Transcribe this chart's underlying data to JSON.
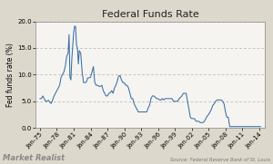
{
  "title": "Federal Funds Rate",
  "ylabel": "Fed funds rate (%)",
  "source_text": "Source: Federal Reserve Bank of St. Louis",
  "watermark": "Market Realist",
  "ylim": [
    0.0,
    20.0
  ],
  "yticks": [
    0.0,
    5.0,
    10.0,
    15.0,
    20.0
  ],
  "xtick_labels": [
    "Jan-75",
    "Jan-78",
    "Jan-81",
    "Jan-84",
    "Jan-87",
    "Jan-90",
    "Jan-93",
    "Jan-96",
    "Jan-99",
    "Jan-02",
    "Jan-05",
    "Jan-08",
    "Jan-11",
    "Jan-14"
  ],
  "line_color": "#3a6ea5",
  "bg_color": "#ddd8cc",
  "plot_bg_color": "#f5f4f0",
  "grid_color": "#aaaaaa",
  "title_fontsize": 8,
  "label_fontsize": 5.5,
  "tick_fontsize": 5.0,
  "watermark_fontsize": 6,
  "source_fontsize": 3.8,
  "series": [
    [
      1975.0,
      5.5
    ],
    [
      1975.25,
      5.5
    ],
    [
      1975.5,
      6.0
    ],
    [
      1975.75,
      5.5
    ],
    [
      1976.0,
      5.0
    ],
    [
      1976.25,
      5.0
    ],
    [
      1976.5,
      5.2
    ],
    [
      1976.75,
      4.8
    ],
    [
      1977.0,
      4.6
    ],
    [
      1977.25,
      5.25
    ],
    [
      1977.5,
      6.0
    ],
    [
      1977.75,
      6.5
    ],
    [
      1978.0,
      7.0
    ],
    [
      1978.25,
      7.5
    ],
    [
      1978.5,
      8.0
    ],
    [
      1978.75,
      9.5
    ],
    [
      1979.0,
      10.0
    ],
    [
      1979.25,
      10.5
    ],
    [
      1979.5,
      11.5
    ],
    [
      1979.75,
      13.5
    ],
    [
      1980.0,
      14.0
    ],
    [
      1980.17,
      17.5
    ],
    [
      1980.33,
      9.5
    ],
    [
      1980.5,
      9.0
    ],
    [
      1980.67,
      13.0
    ],
    [
      1980.83,
      15.5
    ],
    [
      1981.0,
      18.0
    ],
    [
      1981.17,
      19.1
    ],
    [
      1981.33,
      19.0
    ],
    [
      1981.5,
      15.5
    ],
    [
      1981.67,
      15.0
    ],
    [
      1981.83,
      12.0
    ],
    [
      1982.0,
      14.5
    ],
    [
      1982.25,
      14.0
    ],
    [
      1982.5,
      10.5
    ],
    [
      1982.75,
      8.5
    ],
    [
      1983.0,
      8.5
    ],
    [
      1983.25,
      8.6
    ],
    [
      1983.5,
      9.4
    ],
    [
      1983.75,
      9.4
    ],
    [
      1984.0,
      9.5
    ],
    [
      1984.25,
      10.5
    ],
    [
      1984.5,
      11.5
    ],
    [
      1984.75,
      8.5
    ],
    [
      1985.0,
      8.0
    ],
    [
      1985.25,
      8.0
    ],
    [
      1985.5,
      7.8
    ],
    [
      1985.75,
      7.8
    ],
    [
      1986.0,
      8.0
    ],
    [
      1986.25,
      7.0
    ],
    [
      1986.5,
      6.5
    ],
    [
      1986.75,
      6.0
    ],
    [
      1987.0,
      6.0
    ],
    [
      1987.25,
      6.5
    ],
    [
      1987.5,
      6.6
    ],
    [
      1987.75,
      7.0
    ],
    [
      1988.0,
      6.5
    ],
    [
      1988.25,
      7.5
    ],
    [
      1988.5,
      8.0
    ],
    [
      1988.75,
      8.8
    ],
    [
      1989.0,
      9.75
    ],
    [
      1989.25,
      9.8
    ],
    [
      1989.5,
      9.0
    ],
    [
      1989.75,
      8.5
    ],
    [
      1990.0,
      8.5
    ],
    [
      1990.25,
      8.0
    ],
    [
      1990.5,
      8.0
    ],
    [
      1990.75,
      7.5
    ],
    [
      1991.0,
      6.5
    ],
    [
      1991.25,
      5.5
    ],
    [
      1991.5,
      5.5
    ],
    [
      1991.75,
      4.5
    ],
    [
      1992.0,
      4.0
    ],
    [
      1992.25,
      3.5
    ],
    [
      1992.5,
      3.0
    ],
    [
      1992.75,
      3.0
    ],
    [
      1993.0,
      3.0
    ],
    [
      1993.25,
      3.0
    ],
    [
      1993.5,
      3.0
    ],
    [
      1993.75,
      3.0
    ],
    [
      1994.0,
      3.0
    ],
    [
      1994.25,
      3.75
    ],
    [
      1994.5,
      4.25
    ],
    [
      1994.75,
      5.5
    ],
    [
      1995.0,
      6.0
    ],
    [
      1995.25,
      6.0
    ],
    [
      1995.5,
      5.75
    ],
    [
      1995.75,
      5.5
    ],
    [
      1996.0,
      5.5
    ],
    [
      1996.25,
      5.25
    ],
    [
      1996.5,
      5.25
    ],
    [
      1996.75,
      5.5
    ],
    [
      1997.0,
      5.25
    ],
    [
      1997.25,
      5.5
    ],
    [
      1997.5,
      5.5
    ],
    [
      1997.75,
      5.5
    ],
    [
      1998.0,
      5.5
    ],
    [
      1998.25,
      5.5
    ],
    [
      1998.5,
      5.5
    ],
    [
      1998.75,
      5.0
    ],
    [
      1999.0,
      5.0
    ],
    [
      1999.25,
      5.0
    ],
    [
      1999.5,
      5.0
    ],
    [
      1999.75,
      5.5
    ],
    [
      2000.0,
      5.75
    ],
    [
      2000.25,
      6.0
    ],
    [
      2000.5,
      6.5
    ],
    [
      2000.75,
      6.5
    ],
    [
      2001.0,
      6.5
    ],
    [
      2001.25,
      5.0
    ],
    [
      2001.5,
      3.5
    ],
    [
      2001.75,
      2.0
    ],
    [
      2002.0,
      1.75
    ],
    [
      2002.25,
      1.75
    ],
    [
      2002.5,
      1.75
    ],
    [
      2002.75,
      1.25
    ],
    [
      2003.0,
      1.25
    ],
    [
      2003.25,
      1.25
    ],
    [
      2003.5,
      1.0
    ],
    [
      2003.75,
      1.0
    ],
    [
      2004.0,
      1.0
    ],
    [
      2004.25,
      1.25
    ],
    [
      2004.5,
      1.75
    ],
    [
      2004.75,
      2.25
    ],
    [
      2005.0,
      2.5
    ],
    [
      2005.25,
      3.0
    ],
    [
      2005.5,
      3.5
    ],
    [
      2005.75,
      4.25
    ],
    [
      2006.0,
      4.5
    ],
    [
      2006.25,
      5.0
    ],
    [
      2006.5,
      5.25
    ],
    [
      2006.75,
      5.25
    ],
    [
      2007.0,
      5.25
    ],
    [
      2007.25,
      5.25
    ],
    [
      2007.5,
      5.0
    ],
    [
      2007.75,
      4.5
    ],
    [
      2008.0,
      3.0
    ],
    [
      2008.25,
      2.0
    ],
    [
      2008.5,
      2.0
    ],
    [
      2008.75,
      0.25
    ],
    [
      2009.0,
      0.25
    ],
    [
      2009.25,
      0.25
    ],
    [
      2009.5,
      0.25
    ],
    [
      2009.75,
      0.25
    ],
    [
      2010.0,
      0.25
    ],
    [
      2010.25,
      0.25
    ],
    [
      2010.5,
      0.25
    ],
    [
      2010.75,
      0.25
    ],
    [
      2011.0,
      0.25
    ],
    [
      2011.25,
      0.25
    ],
    [
      2011.5,
      0.25
    ],
    [
      2011.75,
      0.25
    ],
    [
      2012.0,
      0.25
    ],
    [
      2012.25,
      0.25
    ],
    [
      2012.5,
      0.25
    ],
    [
      2012.75,
      0.25
    ],
    [
      2013.0,
      0.25
    ],
    [
      2013.25,
      0.25
    ],
    [
      2013.5,
      0.25
    ],
    [
      2013.75,
      0.25
    ],
    [
      2014.0,
      0.25
    ],
    [
      2014.25,
      0.25
    ]
  ]
}
